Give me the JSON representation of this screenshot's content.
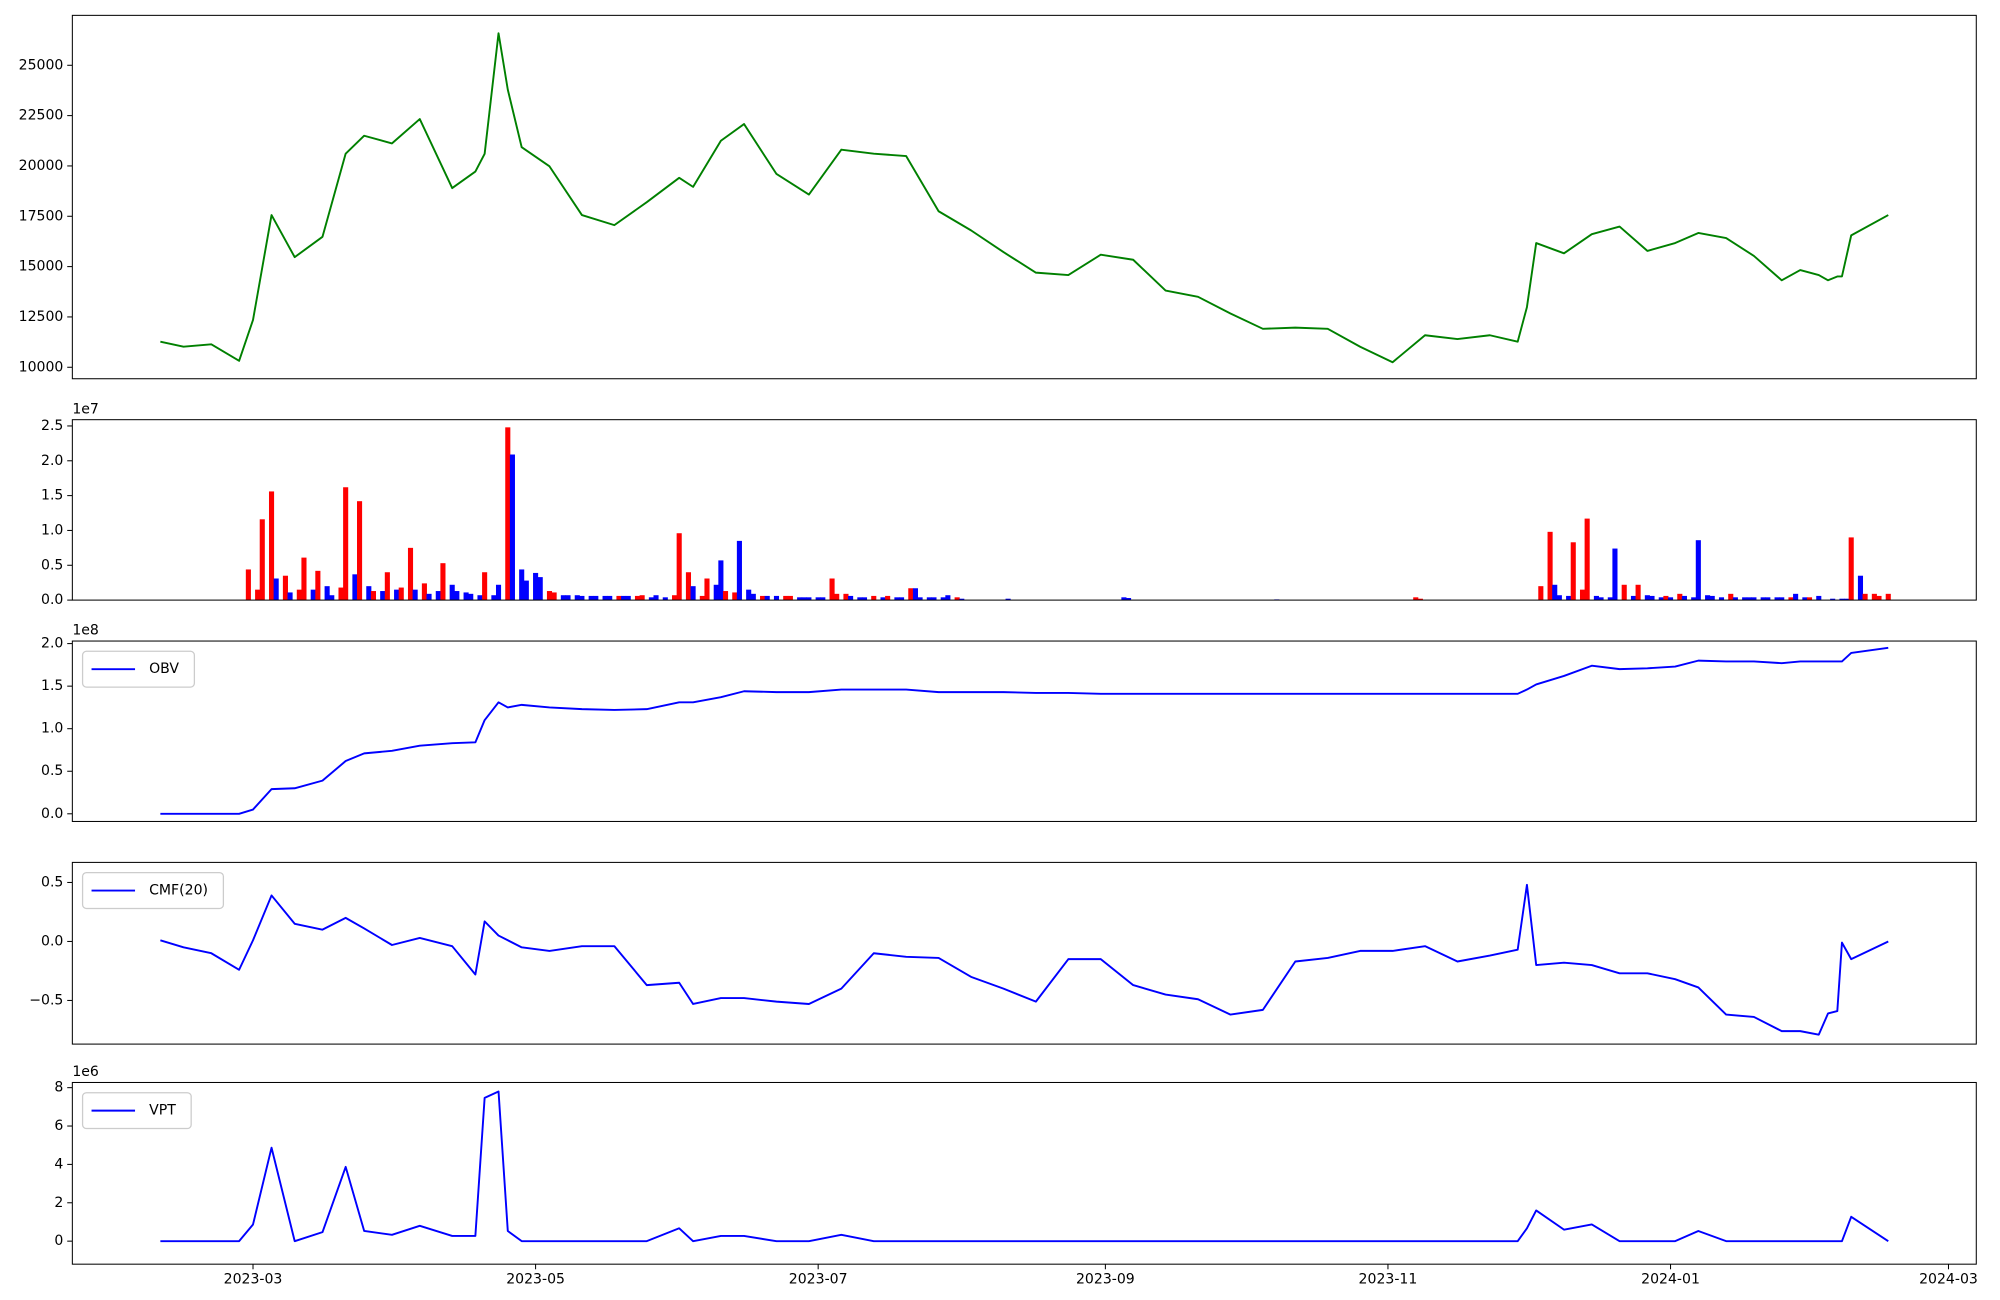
{
  "chart_data": [
    {
      "type": "line",
      "color": "#008000",
      "x": [
        19397,
        19402,
        19408,
        19414,
        19417,
        19421,
        19426,
        19432,
        19437,
        19441,
        19447,
        19453,
        19460,
        19465,
        19467,
        19470,
        19472,
        19475,
        19481,
        19488,
        19495,
        19502,
        19509,
        19512,
        19518,
        19523,
        19530,
        19537,
        19544,
        19551,
        19558,
        19565,
        19572,
        19579,
        19586,
        19593,
        19600,
        19607,
        19614,
        19621,
        19628,
        19635,
        19642,
        19649,
        19656,
        19663,
        19670,
        19677,
        19684,
        19690,
        19692,
        19694,
        19700,
        19706,
        19712,
        19718,
        19724,
        19729,
        19735,
        19741,
        19747,
        19751,
        19755,
        19757,
        19759,
        19760,
        19762,
        19770
      ],
      "values": [
        11270,
        11020,
        11140,
        10320,
        12350,
        17560,
        15470,
        16480,
        20610,
        21500,
        21120,
        22330,
        18900,
        19720,
        20600,
        26590,
        23790,
        20930,
        19980,
        17560,
        17060,
        18200,
        19410,
        18960,
        21250,
        22080,
        19600,
        18580,
        20810,
        20610,
        20490,
        17750,
        16800,
        15720,
        14700,
        14580,
        15590,
        15340,
        13810,
        13500,
        12670,
        11910,
        11970,
        11910,
        11020,
        10250,
        11590,
        11400,
        11590,
        11270,
        12990,
        16170,
        15660,
        16610,
        16990,
        15780,
        16170,
        16670,
        16420,
        15530,
        14320,
        14830,
        14580,
        14320,
        14510,
        14510,
        16550,
        17560
      ],
      "xlim": [
        19378,
        19789
      ],
      "ylim": [
        9430,
        27480
      ],
      "yticks": [
        10000,
        12500,
        15000,
        17500,
        20000,
        22500,
        25000
      ]
    },
    {
      "type": "bar",
      "y_offset_label": "1e7",
      "x": [
        19416,
        19418,
        19419,
        19421,
        19422,
        19424,
        19425,
        19427,
        19428,
        19430,
        19431,
        19433,
        19434,
        19436,
        19437,
        19439,
        19440,
        19442,
        19443,
        19445,
        19446,
        19448,
        19449,
        19451,
        19452,
        19454,
        19455,
        19457,
        19458,
        19460,
        19461,
        19463,
        19464,
        19466,
        19467,
        19469,
        19470,
        19472,
        19473,
        19475,
        19476,
        19478,
        19479,
        19481,
        19482,
        19484,
        19485,
        19487,
        19488,
        19490,
        19491,
        19493,
        19494,
        19496,
        19497,
        19498,
        19500,
        19501,
        19503,
        19504,
        19506,
        19508,
        19509,
        19511,
        19512,
        19514,
        19515,
        19517,
        19518,
        19519,
        19521,
        19522,
        19524,
        19525,
        19527,
        19528,
        19530,
        19532,
        19533,
        19535,
        19536,
        19537,
        19539,
        19540,
        19542,
        19543,
        19545,
        19546,
        19548,
        19549,
        19551,
        19553,
        19554,
        19556,
        19557,
        19559,
        19560,
        19561,
        19563,
        19564,
        19566,
        19567,
        19569,
        19570,
        19580,
        19605,
        19606,
        19638,
        19668,
        19669,
        19695,
        19697,
        19698,
        19699,
        19701,
        19702,
        19704,
        19705,
        19707,
        19708,
        19710,
        19711,
        19713,
        19715,
        19716,
        19718,
        19719,
        19721,
        19722,
        19723,
        19725,
        19726,
        19728,
        19729,
        19731,
        19732,
        19734,
        19736,
        19737,
        19739,
        19740,
        19741,
        19743,
        19744,
        19746,
        19747,
        19749,
        19750,
        19752,
        19753,
        19755,
        19758,
        19760,
        19761,
        19762,
        19764,
        19765,
        19767,
        19768,
        19770
      ],
      "values": [
        0.44,
        0.15,
        1.16,
        1.56,
        0.31,
        0.35,
        0.11,
        0.15,
        0.61,
        0.15,
        0.42,
        0.2,
        0.07,
        0.18,
        1.62,
        0.37,
        1.42,
        0.2,
        0.13,
        0.13,
        0.4,
        0.15,
        0.18,
        0.75,
        0.15,
        0.24,
        0.09,
        0.13,
        0.53,
        0.22,
        0.13,
        0.11,
        0.09,
        0.07,
        0.4,
        0.07,
        0.22,
        2.48,
        2.09,
        0.44,
        0.28,
        0.39,
        0.33,
        0.13,
        0.11,
        0.07,
        0.07,
        0.07,
        0.06,
        0.06,
        0.06,
        0.06,
        0.06,
        0.06,
        0.06,
        0.06,
        0.06,
        0.07,
        0.04,
        0.07,
        0.04,
        0.07,
        0.96,
        0.4,
        0.2,
        0.06,
        0.31,
        0.22,
        0.57,
        0.13,
        0.11,
        0.85,
        0.15,
        0.09,
        0.06,
        0.06,
        0.06,
        0.06,
        0.06,
        0.04,
        0.04,
        0.04,
        0.04,
        0.04,
        0.31,
        0.09,
        0.09,
        0.06,
        0.04,
        0.04,
        0.06,
        0.04,
        0.06,
        0.04,
        0.04,
        0.17,
        0.17,
        0.04,
        0.04,
        0.04,
        0.04,
        0.07,
        0.04,
        0.02,
        0.02,
        0.04,
        0.03,
        0.01,
        0.04,
        0.02,
        0.2,
        0.98,
        0.22,
        0.07,
        0.06,
        0.83,
        0.15,
        1.17,
        0.06,
        0.04,
        0.04,
        0.74,
        0.22,
        0.06,
        0.22,
        0.07,
        0.06,
        0.04,
        0.06,
        0.04,
        0.09,
        0.06,
        0.04,
        0.86,
        0.07,
        0.06,
        0.04,
        0.09,
        0.04,
        0.04,
        0.04,
        0.04,
        0.04,
        0.04,
        0.04,
        0.04,
        0.04,
        0.09,
        0.04,
        0.04,
        0.06,
        0.02,
        0.02,
        0.02,
        0.9,
        0.35,
        0.09,
        0.09,
        0.06,
        0.09
      ],
      "colors": [
        "red",
        "red",
        "red",
        "red",
        "blue",
        "red",
        "blue",
        "red",
        "red",
        "blue",
        "red",
        "blue",
        "blue",
        "red",
        "red",
        "blue",
        "red",
        "blue",
        "red",
        "blue",
        "red",
        "blue",
        "red",
        "red",
        "blue",
        "red",
        "blue",
        "blue",
        "red",
        "blue",
        "blue",
        "blue",
        "blue",
        "blue",
        "red",
        "blue",
        "blue",
        "red",
        "blue",
        "blue",
        "blue",
        "blue",
        "blue",
        "red",
        "red",
        "blue",
        "blue",
        "blue",
        "blue",
        "blue",
        "blue",
        "blue",
        "blue",
        "red",
        "blue",
        "blue",
        "red",
        "red",
        "blue",
        "blue",
        "blue",
        "red",
        "red",
        "red",
        "blue",
        "red",
        "red",
        "blue",
        "blue",
        "red",
        "red",
        "blue",
        "blue",
        "blue",
        "red",
        "blue",
        "blue",
        "red",
        "red",
        "blue",
        "blue",
        "blue",
        "blue",
        "blue",
        "red",
        "red",
        "red",
        "blue",
        "blue",
        "blue",
        "red",
        "blue",
        "red",
        "blue",
        "blue",
        "red",
        "blue",
        "blue",
        "blue",
        "blue",
        "blue",
        "blue",
        "red",
        "blue",
        "blue",
        "blue",
        "blue",
        "blue",
        "red",
        "red",
        "red",
        "red",
        "blue",
        "blue",
        "blue",
        "red",
        "red",
        "red",
        "blue",
        "blue",
        "blue",
        "blue",
        "red",
        "blue",
        "red",
        "blue",
        "blue",
        "blue",
        "red",
        "blue",
        "red",
        "blue",
        "blue",
        "blue",
        "blue",
        "blue",
        "blue",
        "red",
        "blue",
        "blue",
        "blue",
        "blue",
        "blue",
        "blue",
        "blue",
        "blue",
        "red",
        "blue",
        "blue",
        "red",
        "blue",
        "blue",
        "blue",
        "blue",
        "red",
        "blue",
        "red",
        "red",
        "red",
        "red"
      ],
      "xlim": [
        19378,
        19789
      ],
      "ylim": [
        0,
        2.59
      ],
      "yticks": [
        {
          "value": 0,
          "label": "0.0"
        },
        {
          "value": 0.5,
          "label": "0.5"
        },
        {
          "value": 1,
          "label": "1.0"
        },
        {
          "value": 1.5,
          "label": "1.5"
        },
        {
          "value": 2,
          "label": "2.0"
        },
        {
          "value": 2.5,
          "label": "2.5"
        }
      ]
    },
    {
      "type": "line",
      "y_offset_label": "1e8",
      "legend": "upper left",
      "x": [
        19397,
        19402,
        19408,
        19414,
        19417,
        19421,
        19426,
        19432,
        19437,
        19441,
        19447,
        19453,
        19460,
        19465,
        19467,
        19470,
        19472,
        19475,
        19481,
        19488,
        19495,
        19502,
        19509,
        19512,
        19518,
        19523,
        19530,
        19537,
        19544,
        19551,
        19558,
        19565,
        19572,
        19579,
        19586,
        19593,
        19600,
        19607,
        19614,
        19621,
        19628,
        19635,
        19642,
        19649,
        19656,
        19663,
        19670,
        19677,
        19684,
        19690,
        19692,
        19694,
        19700,
        19706,
        19712,
        19718,
        19724,
        19729,
        19735,
        19741,
        19747,
        19751,
        19755,
        19757,
        19759,
        19760,
        19762,
        19770
      ],
      "series": [
        {
          "name": "OBV",
          "color": "blue",
          "values": [
            0,
            0,
            0,
            0,
            0.05,
            0.29,
            0.3,
            0.39,
            0.62,
            0.71,
            0.74,
            0.8,
            0.83,
            0.84,
            1.1,
            1.31,
            1.25,
            1.28,
            1.25,
            1.23,
            1.22,
            1.23,
            1.31,
            1.31,
            1.37,
            1.44,
            1.43,
            1.43,
            1.46,
            1.46,
            1.46,
            1.43,
            1.43,
            1.43,
            1.42,
            1.42,
            1.41,
            1.41,
            1.41,
            1.41,
            1.41,
            1.41,
            1.41,
            1.41,
            1.41,
            1.41,
            1.41,
            1.41,
            1.41,
            1.41,
            1.46,
            1.52,
            1.62,
            1.74,
            1.7,
            1.71,
            1.73,
            1.8,
            1.79,
            1.79,
            1.77,
            1.79,
            1.79,
            1.79,
            1.79,
            1.79,
            1.89,
            1.95
          ]
        }
      ],
      "xlim": [
        19378,
        19789
      ],
      "ylim": [
        -0.09,
        2.03
      ],
      "yticks": [
        {
          "value": 0,
          "label": "0.0"
        },
        {
          "value": 0.5,
          "label": "0.5"
        },
        {
          "value": 1,
          "label": "1.0"
        },
        {
          "value": 1.5,
          "label": "1.5"
        },
        {
          "value": 2,
          "label": "2.0"
        }
      ]
    },
    {
      "type": "line",
      "legend": "upper left",
      "x": [
        19397,
        19402,
        19408,
        19414,
        19417,
        19421,
        19426,
        19432,
        19437,
        19441,
        19447,
        19453,
        19460,
        19465,
        19467,
        19470,
        19472,
        19475,
        19481,
        19488,
        19495,
        19502,
        19509,
        19512,
        19518,
        19523,
        19530,
        19537,
        19544,
        19551,
        19558,
        19565,
        19572,
        19579,
        19586,
        19593,
        19600,
        19607,
        19614,
        19621,
        19628,
        19635,
        19642,
        19649,
        19656,
        19663,
        19670,
        19677,
        19684,
        19690,
        19692,
        19694,
        19700,
        19706,
        19712,
        19718,
        19724,
        19729,
        19735,
        19741,
        19747,
        19751,
        19755,
        19757,
        19759,
        19760,
        19762,
        19770
      ],
      "series": [
        {
          "name": "CMF(20)",
          "color": "blue",
          "values": [
            0.01,
            -0.05,
            -0.1,
            -0.24,
            0.01,
            0.39,
            0.15,
            0.1,
            0.2,
            0.11,
            -0.03,
            0.03,
            -0.04,
            -0.28,
            0.17,
            0.05,
            0.01,
            -0.05,
            -0.08,
            -0.04,
            -0.04,
            -0.37,
            -0.35,
            -0.53,
            -0.48,
            -0.48,
            -0.51,
            -0.53,
            -0.4,
            -0.1,
            -0.13,
            -0.14,
            -0.3,
            -0.4,
            -0.51,
            -0.15,
            -0.15,
            -0.37,
            -0.45,
            -0.49,
            -0.62,
            -0.58,
            -0.17,
            -0.14,
            -0.08,
            -0.08,
            -0.04,
            -0.17,
            -0.12,
            -0.07,
            0.48,
            -0.2,
            -0.18,
            -0.2,
            -0.27,
            -0.27,
            -0.32,
            -0.39,
            -0.62,
            -0.64,
            -0.76,
            -0.76,
            -0.79,
            -0.61,
            -0.59,
            -0.01,
            -0.15,
            0
          ]
        }
      ],
      "xlim": [
        19378,
        19789
      ],
      "ylim": [
        -0.87,
        0.67
      ],
      "yticks": [
        {
          "value": -0.5,
          "label": "−0.5"
        },
        {
          "value": 0,
          "label": "0.0"
        },
        {
          "value": 0.5,
          "label": "0.5"
        }
      ]
    },
    {
      "type": "line",
      "y_offset_label": "1e6",
      "legend": "upper left",
      "x": [
        19397,
        19402,
        19408,
        19414,
        19417,
        19421,
        19426,
        19432,
        19437,
        19441,
        19447,
        19453,
        19460,
        19465,
        19467,
        19470,
        19472,
        19475,
        19481,
        19488,
        19495,
        19502,
        19509,
        19512,
        19518,
        19523,
        19530,
        19537,
        19544,
        19551,
        19558,
        19565,
        19572,
        19579,
        19586,
        19593,
        19600,
        19607,
        19614,
        19621,
        19628,
        19635,
        19642,
        19649,
        19656,
        19663,
        19670,
        19677,
        19684,
        19690,
        19692,
        19694,
        19700,
        19706,
        19712,
        19718,
        19724,
        19729,
        19735,
        19741,
        19747,
        19751,
        19755,
        19757,
        19759,
        19760,
        19762,
        19770
      ],
      "series": [
        {
          "name": "VPT",
          "color": "blue",
          "values": [
            0,
            0,
            0,
            0,
            0.87,
            4.87,
            0,
            0.47,
            3.87,
            0.53,
            0.33,
            0.8,
            0.27,
            0.27,
            7.47,
            7.8,
            0.53,
            0,
            0,
            0,
            0,
            0,
            0.67,
            0,
            0.27,
            0.27,
            0,
            0,
            0.33,
            0,
            0,
            0,
            0,
            0,
            0,
            0,
            0,
            0,
            0,
            0,
            0,
            0,
            0,
            0,
            0,
            0,
            0,
            0,
            0,
            0,
            0.67,
            1.6,
            0.6,
            0.87,
            0,
            0,
            0,
            0.53,
            0,
            0,
            0,
            0,
            0,
            0,
            0,
            0,
            1.27,
            0
          ]
        }
      ],
      "xlim": [
        19378,
        19789
      ],
      "ylim": [
        -1.2,
        8.27
      ],
      "yticks": [
        0,
        2,
        4,
        6,
        8
      ],
      "xticks": [
        {
          "value": 19417,
          "label": "2023-03"
        },
        {
          "value": 19478,
          "label": "2023-05"
        },
        {
          "value": 19539,
          "label": "2023-07"
        },
        {
          "value": 19601,
          "label": "2023-09"
        },
        {
          "value": 19662,
          "label": "2023-11"
        },
        {
          "value": 19723,
          "label": "2024-01"
        },
        {
          "value": 19783,
          "label": "2024-03"
        }
      ]
    }
  ]
}
